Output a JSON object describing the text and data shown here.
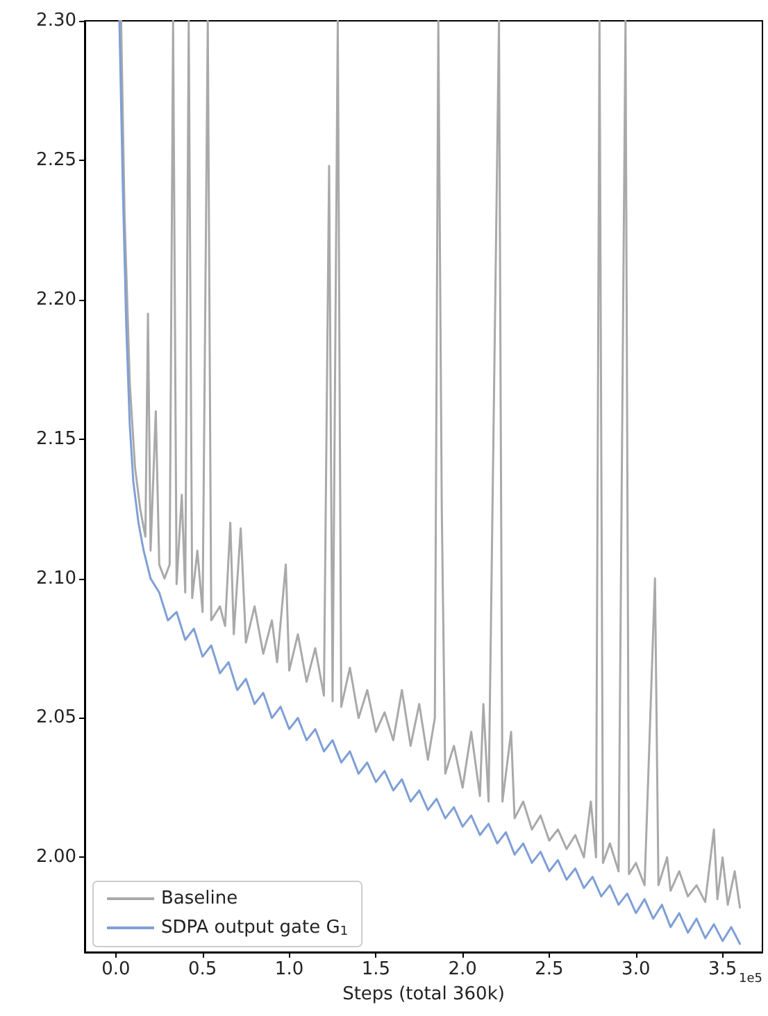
{
  "chart_data": {
    "type": "line",
    "xlabel": "Steps (total 360k)",
    "annotations": [
      "1e5"
    ],
    "xlim": [
      -0.18,
      3.73
    ],
    "ylim": [
      1.966,
      2.3
    ],
    "xticks": [
      {
        "value": 0,
        "label": "0.0"
      },
      {
        "value": 0.5,
        "label": "0.5"
      },
      {
        "value": 1,
        "label": "1.0"
      },
      {
        "value": 1.5,
        "label": "1.5"
      },
      {
        "value": 2,
        "label": "2.0"
      },
      {
        "value": 2.5,
        "label": "2.5"
      },
      {
        "value": 3,
        "label": "3.0"
      },
      {
        "value": 3.5,
        "label": "3.5"
      }
    ],
    "yticks": [
      {
        "value": 2,
        "label": "2.00"
      },
      {
        "value": 2.05,
        "label": "2.05"
      },
      {
        "value": 2.1,
        "label": "2.10"
      },
      {
        "value": 2.15,
        "label": "2.15"
      },
      {
        "value": 2.2,
        "label": "2.20"
      },
      {
        "value": 2.25,
        "label": "2.25"
      },
      {
        "value": 2.3,
        "label": "2.30"
      }
    ],
    "grid": false,
    "legend": "bottom left",
    "marker": "none",
    "line_style": "solid",
    "series": [
      {
        "name": "Baseline",
        "color": "#a9a9a9",
        "x": [
          0.03,
          0.05,
          0.08,
          0.11,
          0.14,
          0.17,
          0.185,
          0.2,
          0.23,
          0.25,
          0.28,
          0.31,
          0.33,
          0.35,
          0.38,
          0.4,
          0.42,
          0.44,
          0.47,
          0.5,
          0.53,
          0.55,
          0.6,
          0.63,
          0.66,
          0.68,
          0.72,
          0.75,
          0.8,
          0.85,
          0.9,
          0.93,
          0.98,
          1.0,
          1.05,
          1.1,
          1.15,
          1.2,
          1.23,
          1.25,
          1.28,
          1.3,
          1.35,
          1.4,
          1.45,
          1.5,
          1.55,
          1.6,
          1.65,
          1.7,
          1.75,
          1.8,
          1.84,
          1.86,
          1.88,
          1.9,
          1.95,
          2.0,
          2.05,
          2.1,
          2.12,
          2.15,
          2.21,
          2.23,
          2.28,
          2.3,
          2.35,
          2.4,
          2.45,
          2.5,
          2.55,
          2.6,
          2.65,
          2.7,
          2.74,
          2.77,
          2.79,
          2.81,
          2.85,
          2.9,
          2.94,
          2.96,
          3.0,
          3.05,
          3.11,
          3.13,
          3.18,
          3.2,
          3.25,
          3.3,
          3.35,
          3.4,
          3.45,
          3.47,
          3.5,
          3.53,
          3.57,
          3.6
        ],
        "values": [
          2.3,
          2.23,
          2.17,
          2.14,
          2.125,
          2.115,
          2.195,
          2.11,
          2.16,
          2.105,
          2.1,
          2.105,
          2.3,
          2.098,
          2.13,
          2.095,
          2.3,
          2.093,
          2.11,
          2.088,
          2.3,
          2.085,
          2.09,
          2.083,
          2.12,
          2.08,
          2.118,
          2.077,
          2.09,
          2.073,
          2.085,
          2.07,
          2.105,
          2.067,
          2.08,
          2.063,
          2.075,
          2.058,
          2.248,
          2.056,
          2.3,
          2.054,
          2.068,
          2.05,
          2.06,
          2.045,
          2.052,
          2.042,
          2.06,
          2.04,
          2.055,
          2.035,
          2.05,
          2.3,
          2.125,
          2.03,
          2.04,
          2.025,
          2.045,
          2.022,
          2.055,
          2.02,
          2.3,
          2.02,
          2.045,
          2.014,
          2.02,
          2.01,
          2.015,
          2.006,
          2.01,
          2.003,
          2.008,
          2.0,
          2.02,
          2.0,
          2.3,
          1.998,
          2.005,
          1.995,
          2.3,
          1.994,
          1.998,
          1.99,
          2.1,
          1.99,
          2.0,
          1.988,
          1.995,
          1.986,
          1.99,
          1.984,
          2.01,
          1.985,
          2.0,
          1.983,
          1.995,
          1.982
        ]
      },
      {
        "name": "SDPA output gate G$_{1}$",
        "color": "#7f9fd6",
        "x": [
          0.02,
          0.04,
          0.06,
          0.08,
          0.1,
          0.13,
          0.16,
          0.2,
          0.25,
          0.3,
          0.35,
          0.4,
          0.45,
          0.5,
          0.55,
          0.6,
          0.65,
          0.7,
          0.75,
          0.8,
          0.85,
          0.9,
          0.95,
          1.0,
          1.05,
          1.1,
          1.15,
          1.2,
          1.25,
          1.3,
          1.35,
          1.4,
          1.45,
          1.5,
          1.55,
          1.6,
          1.65,
          1.7,
          1.75,
          1.8,
          1.85,
          1.9,
          1.95,
          2.0,
          2.05,
          2.1,
          2.15,
          2.2,
          2.25,
          2.3,
          2.35,
          2.4,
          2.45,
          2.5,
          2.55,
          2.6,
          2.65,
          2.7,
          2.75,
          2.8,
          2.85,
          2.9,
          2.95,
          3.0,
          3.05,
          3.1,
          3.15,
          3.2,
          3.25,
          3.3,
          3.35,
          3.4,
          3.45,
          3.5,
          3.55,
          3.6
        ],
        "values": [
          2.3,
          2.24,
          2.19,
          2.155,
          2.135,
          2.12,
          2.11,
          2.1,
          2.095,
          2.085,
          2.088,
          2.078,
          2.082,
          2.072,
          2.076,
          2.066,
          2.07,
          2.06,
          2.064,
          2.055,
          2.059,
          2.05,
          2.054,
          2.046,
          2.05,
          2.042,
          2.046,
          2.038,
          2.042,
          2.034,
          2.038,
          2.03,
          2.034,
          2.027,
          2.031,
          2.024,
          2.028,
          2.02,
          2.024,
          2.017,
          2.021,
          2.014,
          2.018,
          2.011,
          2.015,
          2.008,
          2.012,
          2.005,
          2.009,
          2.001,
          2.005,
          1.998,
          2.002,
          1.995,
          1.999,
          1.992,
          1.996,
          1.989,
          1.993,
          1.986,
          1.99,
          1.983,
          1.987,
          1.98,
          1.985,
          1.978,
          1.983,
          1.975,
          1.98,
          1.973,
          1.978,
          1.971,
          1.976,
          1.97,
          1.975,
          1.969
        ]
      }
    ]
  }
}
